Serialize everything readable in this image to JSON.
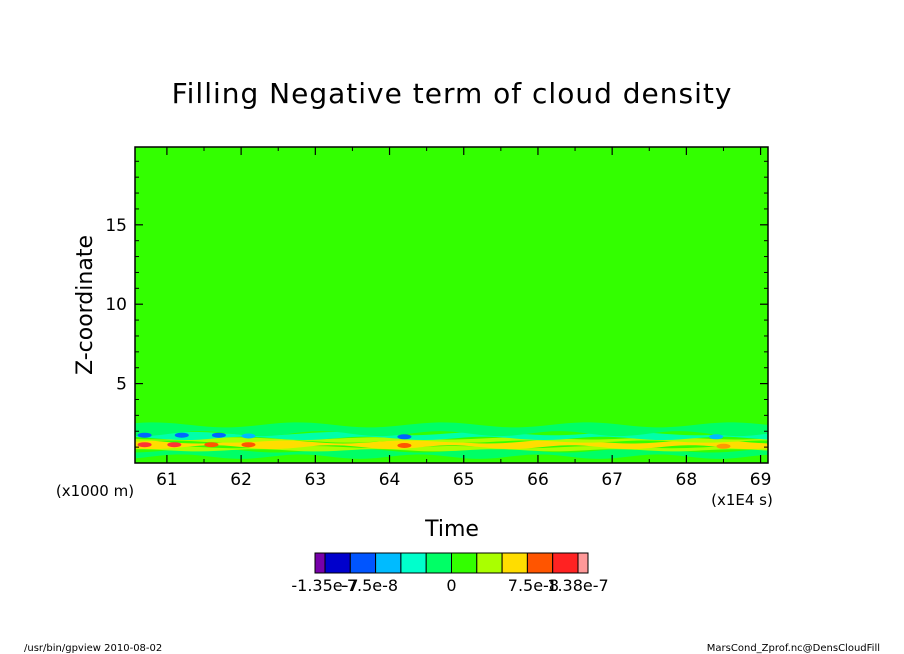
{
  "chart_data": {
    "type": "heatmap",
    "title": "Filling Negative term of cloud density",
    "xlabel": "Time",
    "ylabel": "Z-coordinate",
    "x_unit_label": "(x1E4 s)",
    "y_unit_label": "(x1000 m)",
    "xlim": [
      60.57,
      69.1
    ],
    "ylim": [
      0,
      19.9
    ],
    "x_ticks": [
      61,
      62,
      63,
      64,
      65,
      66,
      67,
      68,
      69
    ],
    "x_tick_labels": [
      "61",
      "62",
      "63",
      "64",
      "65",
      "66",
      "67",
      "68",
      "69"
    ],
    "y_ticks": [
      5,
      10,
      15
    ],
    "y_tick_labels": [
      "5",
      "10",
      "15"
    ],
    "background_color": "#33ff00",
    "bands": [
      {
        "z_min": 0.0,
        "z_max": 0.4,
        "color": "#33ff00"
      },
      {
        "z_min": 0.4,
        "z_max": 0.8,
        "color": "#00ff66"
      },
      {
        "z_min": 0.8,
        "z_max": 1.0,
        "color": "#aaff00"
      },
      {
        "z_min": 1.0,
        "z_max": 1.35,
        "color": "#ffdd00"
      },
      {
        "z_min": 1.35,
        "z_max": 1.55,
        "color": "#aaff00"
      },
      {
        "z_min": 1.55,
        "z_max": 1.85,
        "color": "#00ffaa"
      },
      {
        "z_min": 1.85,
        "z_max": 2.4,
        "color": "#00ff66"
      }
    ],
    "spots": [
      {
        "t": 60.7,
        "z": 1.15,
        "color": "#ff3333"
      },
      {
        "t": 61.1,
        "z": 1.15,
        "color": "#ff3333"
      },
      {
        "t": 61.6,
        "z": 1.15,
        "color": "#ff5500"
      },
      {
        "t": 62.1,
        "z": 1.15,
        "color": "#ff5500"
      },
      {
        "t": 60.7,
        "z": 1.75,
        "color": "#0066ff"
      },
      {
        "t": 61.2,
        "z": 1.75,
        "color": "#0066ff"
      },
      {
        "t": 61.7,
        "z": 1.75,
        "color": "#0066ff"
      },
      {
        "t": 62.1,
        "z": 1.7,
        "color": "#00bbff"
      },
      {
        "t": 64.2,
        "z": 1.65,
        "color": "#0066ff"
      },
      {
        "t": 64.2,
        "z": 1.1,
        "color": "#ff5500"
      },
      {
        "t": 68.4,
        "z": 1.65,
        "color": "#00bbff"
      },
      {
        "t": 68.5,
        "z": 1.05,
        "color": "#ff9900"
      }
    ],
    "colorbar": {
      "colors": [
        "#7700aa",
        "#0000cc",
        "#0055ff",
        "#00bbff",
        "#00ffcc",
        "#00ff66",
        "#33ff00",
        "#aaff00",
        "#ffdd00",
        "#ff5500",
        "#ff2222",
        "#ff9999"
      ],
      "labels": [
        "-1.35e-7",
        "-7.5e-8",
        "0",
        "7.5e-8",
        "1.38e-7"
      ]
    }
  },
  "footer": {
    "left": "/usr/bin/gpview  2010-08-02",
    "right": "MarsCond_Zprof.nc@DensCloudFill"
  }
}
